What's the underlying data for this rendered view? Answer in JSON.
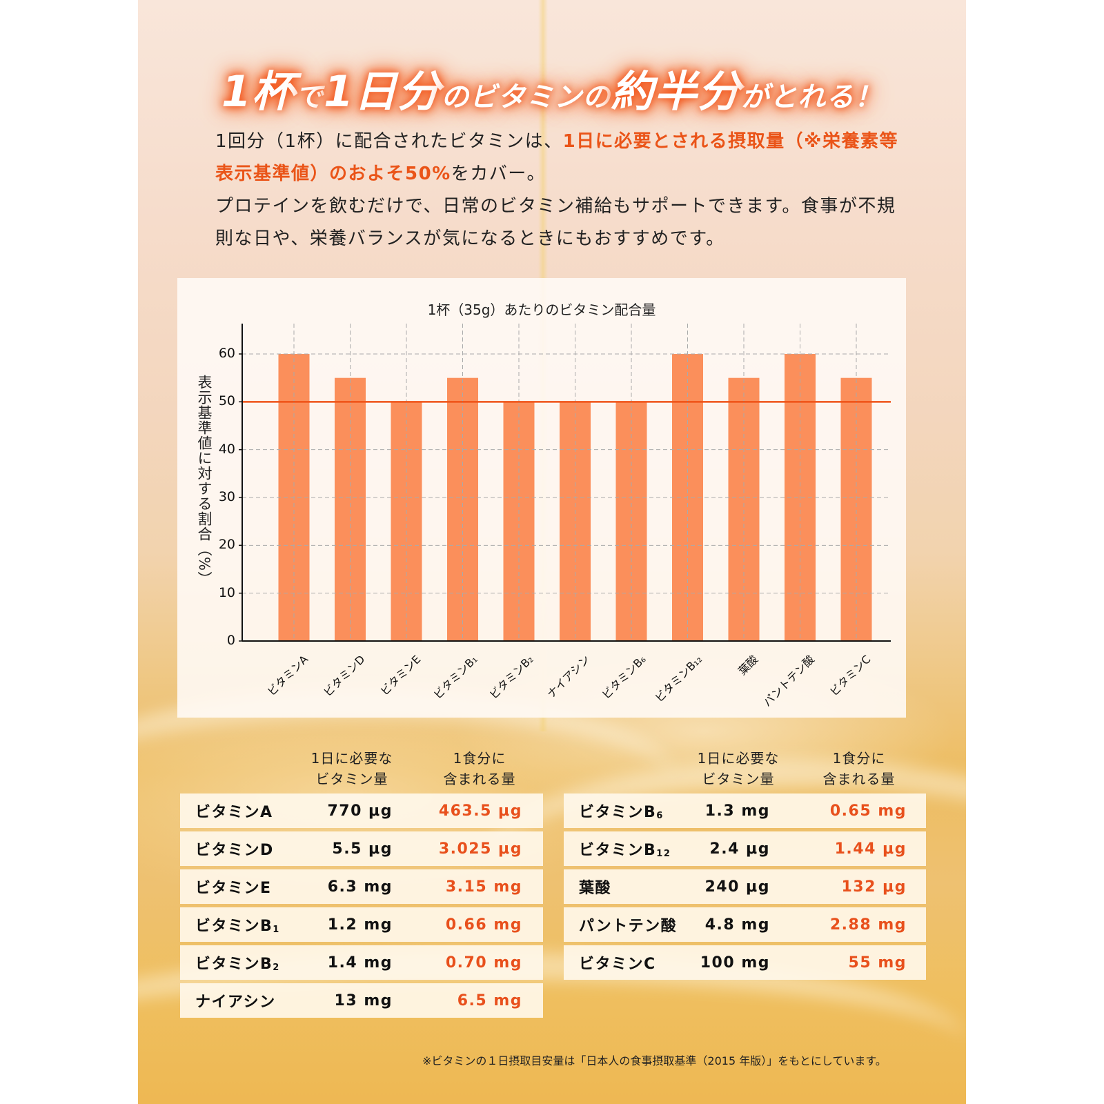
{
  "headline": {
    "parts": [
      {
        "text": "1杯",
        "size": "big"
      },
      {
        "text": "で",
        "size": "small"
      },
      {
        "text": "1日分",
        "size": "big"
      },
      {
        "text": "のビタミンの",
        "size": "small"
      },
      {
        "text": "約半分",
        "size": "big"
      },
      {
        "text": "がとれる！",
        "size": "small"
      }
    ]
  },
  "intro": {
    "p1_normal_a": "1回分（1杯）に配合されたビタミンは、",
    "p1_highlight": "1日に必要とされる摂取量（※栄養素等表示基準値）のおよそ50%",
    "p1_normal_b": "をカバー。",
    "p2": "プロテインを飲むだけで、日常のビタミン補給もサポートできます。食事が不規則な日や、栄養バランスが気になるときにもおすすめです。"
  },
  "colors": {
    "accent": "#ea5418",
    "bar": "#fb8f5b",
    "reference_line": "#ef5216",
    "grid": "#aaaaaa"
  },
  "chart_data": {
    "type": "bar",
    "title": "1杯（35g）あたりのビタミン配合量",
    "xlabel": "",
    "ylabel": "表示基準値に対する割合（%）",
    "categories": [
      "ビタミンA",
      "ビタミンD",
      "ビタミンE",
      "ビタミンB₁",
      "ビタミンB₂",
      "ナイアシン",
      "ビタミンB₆",
      "ビタミンB₁₂",
      "葉酸",
      "パントテン酸",
      "ビタミンC"
    ],
    "values": [
      60,
      55,
      50,
      55,
      50,
      50,
      50,
      60,
      55,
      60,
      55
    ],
    "ylim": [
      0,
      65
    ],
    "yticks": [
      0,
      10,
      20,
      30,
      40,
      50,
      60
    ],
    "reference_line": {
      "y": 50,
      "color": "#ef5216"
    },
    "grid": true,
    "legend": null
  },
  "table": {
    "headers": {
      "required": [
        "1日に必要な",
        "ビタミン量"
      ],
      "per_serving": [
        "1食分に",
        "含まれる量"
      ]
    },
    "left": [
      {
        "name": "ビタミンA",
        "sub": "",
        "required": "770 μg",
        "per_serving": "463.5 μg"
      },
      {
        "name": "ビタミンD",
        "sub": "",
        "required": "5.5 μg",
        "per_serving": "3.025 μg"
      },
      {
        "name": "ビタミンE",
        "sub": "",
        "required": "6.3 mg",
        "per_serving": "3.15 mg"
      },
      {
        "name": "ビタミンB",
        "sub": "1",
        "required": "1.2 mg",
        "per_serving": "0.66 mg"
      },
      {
        "name": "ビタミンB",
        "sub": "2",
        "required": "1.4 mg",
        "per_serving": "0.70 mg"
      },
      {
        "name": "ナイアシン",
        "sub": "",
        "required": "13 mg",
        "per_serving": "6.5 mg"
      }
    ],
    "right": [
      {
        "name": "ビタミンB",
        "sub": "6",
        "required": "1.3 mg",
        "per_serving": "0.65 mg"
      },
      {
        "name": "ビタミンB",
        "sub": "12",
        "required": "2.4 μg",
        "per_serving": "1.44 μg"
      },
      {
        "name": "葉酸",
        "sub": "",
        "required": "240 μg",
        "per_serving": "132 μg"
      },
      {
        "name": "パントテン酸",
        "sub": "",
        "required": "4.8 mg",
        "per_serving": "2.88 mg"
      },
      {
        "name": "ビタミンC",
        "sub": "",
        "required": "100 mg",
        "per_serving": "55 mg"
      }
    ]
  },
  "footnote": "※ビタミンの１日摂取目安量は「日本人の食事摂取基準（2015 年版）」をもとにしています。"
}
